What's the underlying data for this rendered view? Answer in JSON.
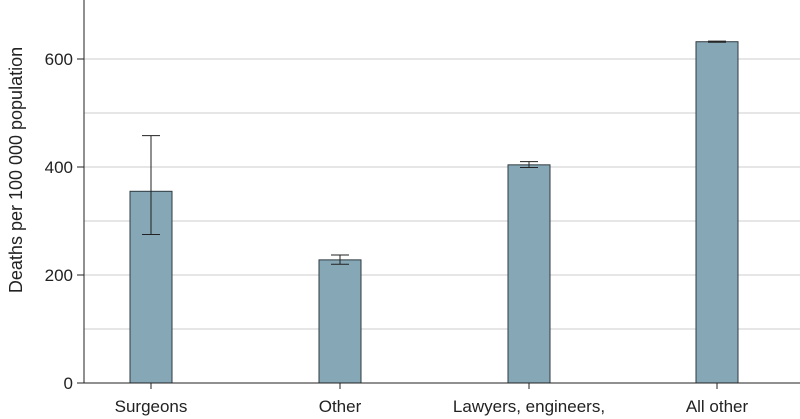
{
  "chart_data": {
    "type": "bar",
    "ylabel": "Deaths per 100 000 population",
    "ylim": [
      0,
      640
    ],
    "yticks": [
      0,
      200,
      400,
      600
    ],
    "ytick_labels": [
      "0",
      "200",
      "400",
      "600"
    ],
    "grid": true,
    "categories": [
      "Surgeons",
      "Other",
      "Lawyers, engineers,",
      "All other"
    ],
    "values": [
      355,
      228,
      404,
      632
    ],
    "error_low": [
      275,
      220,
      399,
      631
    ],
    "error_high": [
      458,
      237,
      410,
      633
    ],
    "colors": {
      "bar": "#86a7b6",
      "bar_edge": "#2e3a40",
      "grid": "#cccccc",
      "axis": "#222222"
    }
  }
}
